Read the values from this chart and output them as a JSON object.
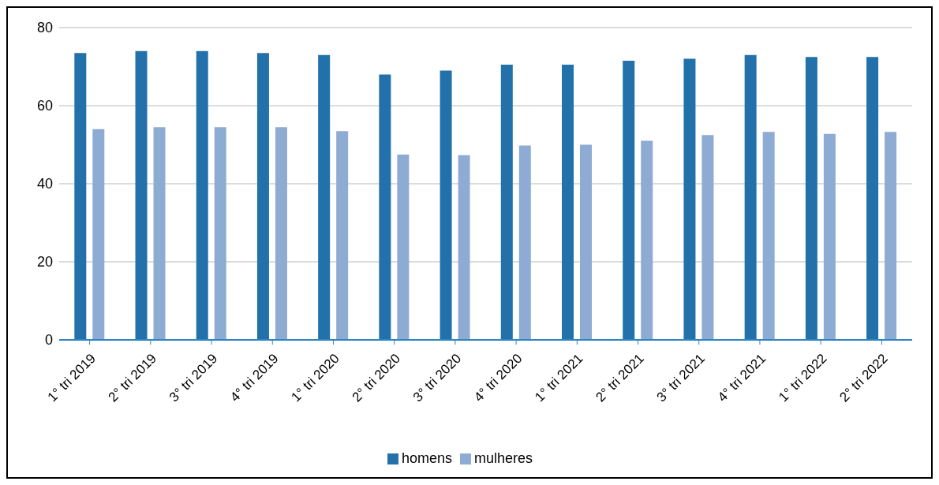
{
  "chart_data": {
    "type": "bar",
    "categories": [
      "1° tri 2019",
      "2° tri 2019",
      "3° tri 2019",
      "4° tri 2019",
      "1° tri 2020",
      "2° tri 2020",
      "3° tri 2020",
      "4° tri 2020",
      "1° tri 2021",
      "2° tri 2021",
      "3° tri 2021",
      "4° tri 2021",
      "1° tri 2022",
      "2° tri 2022"
    ],
    "series": [
      {
        "name": "homens",
        "color": "#2271aa",
        "values": [
          73.5,
          74,
          74,
          73.5,
          73,
          68,
          69,
          70.5,
          70.5,
          71.5,
          72,
          73,
          72.5,
          72.5
        ]
      },
      {
        "name": "mulheres",
        "color": "#8eabd4",
        "values": [
          54,
          54.5,
          54.5,
          54.5,
          53.5,
          47.5,
          47.3,
          49.8,
          50,
          51,
          52.5,
          53.3,
          52.8,
          53.3
        ]
      }
    ],
    "ylim": [
      0,
      80
    ],
    "yticks": [
      0,
      20,
      40,
      60,
      80
    ],
    "grid": "y",
    "legend": "bottom"
  }
}
